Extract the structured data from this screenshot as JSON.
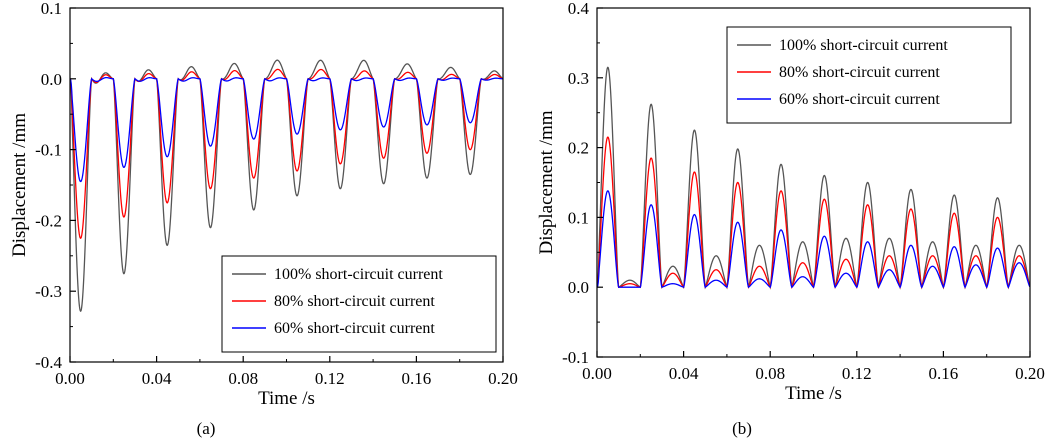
{
  "chart_data": [
    {
      "type": "line",
      "panel": "a",
      "caption": "(a)",
      "xlabel": "Time /s",
      "ylabel": "Displacement /mm",
      "xlim": [
        0,
        0.2
      ],
      "ylim": [
        -0.4,
        0.1
      ],
      "xticks": [
        0,
        0.04,
        0.08,
        0.12,
        0.16,
        0.2
      ],
      "xtick_labels": [
        "0.00",
        "0.04",
        "0.08",
        "0.12",
        "0.16",
        "0.20"
      ],
      "yticks": [
        -0.4,
        -0.3,
        -0.2,
        -0.1,
        0.0,
        0.1
      ],
      "ytick_labels": [
        "-0.4",
        "-0.3",
        "-0.2",
        "-0.1",
        "0.0",
        "0.1"
      ],
      "grid": false,
      "legend_position": "bottom-right",
      "series": [
        {
          "name": "100% short-circuit current",
          "color": "#555555",
          "peaks": [
            -0.328,
            -0.275,
            -0.235,
            -0.21,
            -0.185,
            -0.165,
            -0.155,
            -0.148,
            -0.14,
            -0.135
          ],
          "half_cycle_peaks": [
            0.005,
            0.01,
            0.015,
            0.02,
            0.025,
            0.025,
            0.025,
            0.02,
            0.015,
            0.01
          ],
          "decay": -0.5
        },
        {
          "name": "80%  short-circuit current",
          "color": "#ff0000",
          "peaks": [
            -0.225,
            -0.195,
            -0.175,
            -0.155,
            -0.14,
            -0.13,
            -0.12,
            -0.112,
            -0.105,
            -0.1
          ],
          "half_cycle_peaks": [
            0.003,
            0.005,
            0.008,
            0.01,
            0.012,
            0.012,
            0.01,
            0.008,
            0.005,
            0.005
          ],
          "decay": -0.38
        },
        {
          "name": "60%  short-circuit current",
          "color": "#0000ff",
          "peaks": [
            -0.145,
            -0.125,
            -0.11,
            -0.095,
            -0.085,
            -0.078,
            -0.072,
            -0.068,
            -0.065,
            -0.062
          ],
          "half_cycle_peaks": [
            0.0,
            0.0,
            0.0,
            0.0,
            0.0,
            0.0,
            0.0,
            0.0,
            0.0,
            0.0
          ],
          "decay": -0.2
        }
      ]
    },
    {
      "type": "line",
      "panel": "b",
      "caption": "(b)",
      "xlabel": "Time /s",
      "ylabel": "Displacement /mm",
      "xlim": [
        0,
        0.2
      ],
      "ylim": [
        -0.1,
        0.4
      ],
      "xticks": [
        0,
        0.04,
        0.08,
        0.12,
        0.16,
        0.2
      ],
      "xtick_labels": [
        "0.00",
        "0.04",
        "0.08",
        "0.12",
        "0.16",
        "0.20"
      ],
      "yticks": [
        -0.1,
        0.0,
        0.1,
        0.2,
        0.3,
        0.4
      ],
      "ytick_labels": [
        "-0.1",
        "0.0",
        "0.1",
        "0.2",
        "0.3",
        "0.4"
      ],
      "grid": false,
      "legend_position": "top-right",
      "series": [
        {
          "name": "100% short-circuit current",
          "color": "#555555",
          "peaks": [
            0.315,
            0.262,
            0.225,
            0.198,
            0.176,
            0.16,
            0.15,
            0.14,
            0.132,
            0.128
          ],
          "half_cycle_peaks": [
            0.01,
            0.03,
            0.045,
            0.06,
            0.065,
            0.07,
            0.07,
            0.065,
            0.06,
            0.06
          ],
          "decay": -0.025
        },
        {
          "name": "80%  short-circuit current",
          "color": "#ff0000",
          "peaks": [
            0.215,
            0.185,
            0.165,
            0.15,
            0.138,
            0.126,
            0.118,
            0.112,
            0.106,
            0.1
          ],
          "half_cycle_peaks": [
            0.005,
            0.02,
            0.025,
            0.03,
            0.035,
            0.04,
            0.045,
            0.045,
            0.045,
            0.045
          ],
          "decay": -0.015
        },
        {
          "name": "60%  short-circuit current",
          "color": "#0000ff",
          "peaks": [
            0.138,
            0.118,
            0.104,
            0.093,
            0.082,
            0.073,
            0.065,
            0.06,
            0.058,
            0.056
          ],
          "half_cycle_peaks": [
            0.0,
            0.005,
            0.01,
            0.012,
            0.015,
            0.02,
            0.025,
            0.03,
            0.032,
            0.035
          ],
          "decay": 0.0
        }
      ]
    }
  ]
}
